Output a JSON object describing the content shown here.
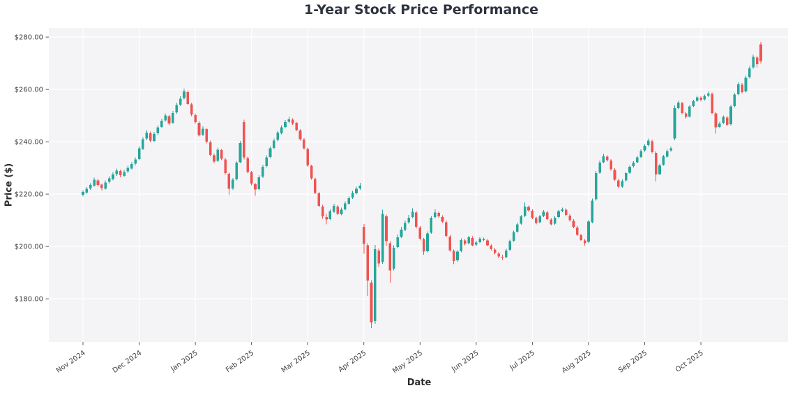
{
  "chart_data": {
    "type": "candlestick",
    "title": "1-Year Stock Price Performance",
    "xlabel": "Date",
    "ylabel": "Price ($)",
    "grid": true,
    "legend": "none",
    "up_color": "#26a69a",
    "down_color": "#ef5350",
    "ylim": [
      163.5,
      283.5
    ],
    "candles_per_month": 15,
    "x_tick_labels": [
      "Nov 2024",
      "Dec 2024",
      "Jan 2025",
      "Feb 2025",
      "Mar 2025",
      "Apr 2025",
      "May 2025",
      "Jun 2025",
      "Jul 2025",
      "Aug 2025",
      "Sep 2025",
      "Oct 2025"
    ],
    "y_ticks": [
      {
        "label": "$280.00",
        "value": 280
      },
      {
        "label": "$260.00",
        "value": 260
      },
      {
        "label": "$240.00",
        "value": 240
      },
      {
        "label": "$220.00",
        "value": 220
      },
      {
        "label": "$200.00",
        "value": 200
      },
      {
        "label": "$180.00",
        "value": 180
      }
    ],
    "ohlc_format": [
      "open",
      "high",
      "low",
      "close"
    ],
    "ohlc": [
      [
        219.8,
        221.5,
        219.1,
        220.8
      ],
      [
        220.6,
        222.7,
        220.2,
        222.0
      ],
      [
        222.2,
        224.2,
        221.6,
        223.5
      ],
      [
        223.3,
        226.3,
        222.9,
        225.5
      ],
      [
        225.3,
        225.9,
        222.8,
        223.5
      ],
      [
        223.7,
        224.1,
        221.4,
        222.3
      ],
      [
        222.1,
        225.2,
        221.8,
        224.5
      ],
      [
        224.7,
        226.8,
        224.0,
        226.0
      ],
      [
        225.8,
        228.4,
        225.3,
        227.5
      ],
      [
        227.7,
        229.8,
        227.0,
        229.0
      ],
      [
        228.8,
        229.4,
        226.5,
        227.2
      ],
      [
        227.0,
        229.3,
        226.6,
        228.5
      ],
      [
        228.7,
        230.8,
        228.1,
        230.0
      ],
      [
        229.8,
        232.3,
        229.4,
        231.5
      ],
      [
        231.7,
        234.0,
        231.0,
        233.2
      ],
      [
        233.4,
        238.3,
        233.0,
        237.5
      ],
      [
        237.3,
        241.8,
        236.8,
        241.0
      ],
      [
        241.2,
        244.4,
        240.6,
        243.5
      ],
      [
        243.3,
        243.9,
        239.8,
        240.5
      ],
      [
        240.3,
        243.8,
        239.9,
        243.0
      ],
      [
        243.2,
        246.3,
        242.6,
        245.5
      ],
      [
        245.7,
        248.9,
        245.2,
        248.0
      ],
      [
        248.2,
        250.9,
        247.6,
        250.0
      ],
      [
        249.8,
        250.3,
        246.3,
        247.0
      ],
      [
        247.2,
        251.8,
        246.8,
        251.0
      ],
      [
        251.2,
        254.8,
        250.7,
        254.0
      ],
      [
        254.2,
        257.4,
        253.6,
        256.5
      ],
      [
        256.7,
        260.3,
        256.2,
        259.3
      ],
      [
        259.0,
        259.6,
        254.0,
        254.5
      ],
      [
        254.3,
        254.9,
        249.8,
        250.5
      ],
      [
        250.2,
        250.8,
        246.9,
        247.5
      ],
      [
        247.3,
        247.9,
        242.0,
        242.5
      ],
      [
        242.7,
        245.9,
        242.2,
        245.0
      ],
      [
        244.8,
        245.3,
        239.4,
        240.0
      ],
      [
        239.8,
        240.4,
        234.4,
        235.0
      ],
      [
        234.8,
        235.5,
        231.8,
        232.5
      ],
      [
        232.7,
        237.8,
        232.3,
        237.0
      ],
      [
        236.8,
        237.3,
        233.0,
        233.5
      ],
      [
        233.3,
        233.9,
        227.4,
        228.0
      ],
      [
        227.8,
        228.3,
        219.6,
        222.0
      ],
      [
        222.2,
        226.2,
        221.7,
        225.5
      ],
      [
        225.7,
        232.6,
        225.2,
        232.0
      ],
      [
        232.2,
        240.3,
        231.8,
        239.5
      ],
      [
        247.5,
        248.4,
        233.2,
        234.0
      ],
      [
        233.8,
        234.3,
        227.9,
        228.5
      ],
      [
        228.3,
        228.8,
        223.4,
        224.0
      ],
      [
        223.8,
        224.3,
        219.4,
        221.8
      ],
      [
        221.9,
        227.2,
        221.4,
        226.5
      ],
      [
        226.7,
        231.2,
        226.2,
        230.5
      ],
      [
        230.7,
        234.8,
        230.2,
        234.0
      ],
      [
        234.2,
        238.2,
        233.8,
        237.5
      ],
      [
        237.7,
        241.2,
        237.2,
        240.5
      ],
      [
        240.7,
        244.2,
        240.2,
        243.5
      ],
      [
        243.3,
        246.3,
        242.9,
        245.5
      ],
      [
        245.7,
        248.3,
        245.2,
        247.5
      ],
      [
        247.7,
        249.7,
        247.2,
        248.6
      ],
      [
        248.4,
        249.0,
        246.5,
        247.0
      ],
      [
        247.2,
        247.7,
        244.0,
        244.5
      ],
      [
        244.3,
        244.9,
        240.5,
        241.0
      ],
      [
        240.8,
        241.4,
        237.0,
        237.5
      ],
      [
        237.3,
        237.8,
        230.5,
        231.0
      ],
      [
        230.8,
        231.3,
        225.5,
        226.0
      ],
      [
        225.8,
        226.3,
        220.0,
        220.5
      ],
      [
        220.3,
        220.9,
        215.0,
        215.5
      ],
      [
        215.3,
        215.9,
        210.6,
        211.5
      ],
      [
        211.3,
        212.4,
        208.4,
        210.3
      ],
      [
        210.5,
        214.2,
        210.0,
        213.5
      ],
      [
        213.3,
        216.3,
        212.9,
        215.5
      ],
      [
        215.3,
        215.8,
        212.0,
        212.5
      ],
      [
        212.3,
        214.8,
        211.9,
        214.0
      ],
      [
        214.2,
        217.3,
        213.8,
        216.5
      ],
      [
        216.3,
        219.3,
        215.9,
        218.5
      ],
      [
        218.7,
        221.3,
        218.2,
        220.5
      ],
      [
        220.3,
        222.8,
        219.9,
        222.0
      ],
      [
        222.2,
        224.3,
        221.7,
        223.3
      ],
      [
        207.5,
        208.6,
        197.2,
        201.0
      ],
      [
        200.5,
        201.2,
        181.1,
        187.0
      ],
      [
        186.2,
        187.1,
        168.8,
        171.0
      ],
      [
        171.5,
        200.6,
        170.4,
        199.0
      ],
      [
        198.5,
        199.3,
        192.2,
        193.5
      ],
      [
        194.0,
        214.1,
        193.4,
        212.5
      ],
      [
        211.5,
        212.2,
        200.3,
        202.0
      ],
      [
        201.2,
        202.0,
        186.2,
        190.8
      ],
      [
        191.5,
        200.4,
        190.8,
        199.5
      ],
      [
        199.8,
        204.6,
        199.2,
        203.5
      ],
      [
        203.7,
        207.5,
        203.2,
        206.5
      ],
      [
        206.3,
        209.9,
        205.9,
        209.0
      ],
      [
        209.2,
        212.0,
        208.7,
        211.0
      ],
      [
        211.2,
        214.6,
        210.8,
        213.2
      ],
      [
        213.0,
        213.5,
        206.8,
        207.5
      ],
      [
        207.3,
        207.8,
        202.3,
        203.0
      ],
      [
        202.8,
        203.3,
        196.8,
        198.0
      ],
      [
        198.2,
        205.8,
        197.8,
        205.0
      ],
      [
        205.2,
        211.6,
        204.8,
        211.0
      ],
      [
        211.2,
        214.2,
        210.7,
        213.0
      ],
      [
        212.8,
        213.4,
        211.0,
        211.5
      ],
      [
        211.3,
        211.9,
        209.0,
        209.5
      ],
      [
        209.3,
        209.9,
        203.5,
        204.0
      ],
      [
        203.8,
        204.4,
        198.0,
        198.5
      ],
      [
        198.3,
        198.9,
        193.2,
        194.5
      ],
      [
        194.7,
        198.6,
        194.2,
        198.0
      ],
      [
        198.2,
        203.1,
        197.8,
        202.5
      ],
      [
        202.3,
        202.9,
        200.4,
        201.0
      ],
      [
        201.2,
        204.1,
        200.8,
        203.5
      ],
      [
        203.3,
        203.9,
        200.0,
        200.5
      ],
      [
        200.7,
        202.2,
        200.2,
        201.5
      ],
      [
        201.7,
        203.7,
        201.2,
        203.0
      ],
      [
        202.8,
        203.4,
        202.0,
        202.5
      ],
      [
        202.3,
        202.9,
        200.0,
        200.5
      ],
      [
        200.3,
        200.9,
        198.4,
        199.0
      ],
      [
        198.8,
        199.4,
        197.0,
        197.5
      ],
      [
        197.3,
        197.9,
        195.5,
        196.2
      ],
      [
        196.0,
        196.8,
        194.9,
        195.8
      ],
      [
        195.9,
        199.1,
        195.5,
        198.5
      ],
      [
        198.7,
        202.6,
        198.3,
        202.0
      ],
      [
        202.2,
        206.1,
        201.8,
        205.5
      ],
      [
        205.7,
        209.1,
        205.3,
        208.5
      ],
      [
        208.7,
        212.1,
        208.3,
        211.5
      ],
      [
        211.7,
        216.8,
        211.3,
        215.3
      ],
      [
        215.1,
        215.7,
        213.2,
        213.8
      ],
      [
        213.6,
        214.2,
        210.5,
        211.0
      ],
      [
        210.8,
        211.4,
        208.5,
        209.0
      ],
      [
        209.2,
        212.1,
        208.8,
        211.5
      ],
      [
        211.7,
        213.9,
        211.3,
        213.2
      ],
      [
        213.0,
        213.6,
        210.0,
        210.5
      ],
      [
        210.3,
        210.9,
        208.0,
        208.5
      ],
      [
        208.7,
        211.6,
        208.3,
        211.0
      ],
      [
        211.2,
        214.1,
        210.8,
        213.5
      ],
      [
        213.6,
        214.9,
        213.1,
        214.2
      ],
      [
        214.0,
        214.6,
        211.5,
        212.0
      ],
      [
        211.8,
        212.4,
        209.5,
        210.0
      ],
      [
        209.8,
        210.4,
        207.0,
        207.5
      ],
      [
        207.3,
        207.9,
        204.0,
        204.5
      ],
      [
        204.3,
        204.9,
        202.0,
        202.5
      ],
      [
        202.3,
        202.9,
        200.3,
        201.2
      ],
      [
        201.8,
        210.2,
        201.3,
        209.5
      ],
      [
        209.2,
        218.3,
        208.8,
        217.5
      ],
      [
        218.0,
        228.9,
        217.5,
        228.0
      ],
      [
        228.2,
        232.8,
        227.8,
        232.0
      ],
      [
        232.2,
        235.4,
        231.8,
        234.5
      ],
      [
        234.3,
        234.9,
        232.5,
        233.0
      ],
      [
        232.8,
        233.4,
        229.0,
        229.5
      ],
      [
        229.3,
        229.9,
        225.0,
        225.5
      ],
      [
        225.3,
        225.9,
        222.2,
        222.8
      ],
      [
        222.9,
        225.6,
        222.4,
        225.0
      ],
      [
        225.2,
        228.5,
        224.8,
        228.0
      ],
      [
        228.2,
        231.0,
        227.8,
        230.5
      ],
      [
        230.7,
        232.6,
        230.2,
        232.0
      ],
      [
        232.2,
        234.6,
        231.8,
        234.0
      ],
      [
        234.2,
        237.1,
        233.8,
        236.5
      ],
      [
        236.7,
        239.1,
        236.2,
        238.5
      ],
      [
        238.7,
        241.2,
        238.2,
        240.5
      ],
      [
        240.2,
        240.8,
        235.5,
        236.0
      ],
      [
        235.8,
        236.3,
        224.8,
        227.5
      ],
      [
        227.7,
        231.6,
        227.2,
        231.0
      ],
      [
        231.2,
        235.0,
        230.8,
        234.5
      ],
      [
        234.3,
        237.1,
        233.9,
        236.5
      ],
      [
        236.7,
        238.2,
        236.2,
        237.5
      ],
      [
        241.3,
        253.9,
        240.6,
        252.8
      ],
      [
        252.9,
        255.7,
        252.4,
        255.0
      ],
      [
        254.8,
        255.3,
        250.5,
        251.0
      ],
      [
        250.8,
        251.4,
        248.9,
        249.5
      ],
      [
        249.7,
        254.1,
        249.2,
        253.5
      ],
      [
        253.7,
        256.1,
        253.2,
        255.5
      ],
      [
        255.7,
        257.7,
        255.2,
        257.0
      ],
      [
        256.8,
        257.4,
        255.4,
        256.0
      ],
      [
        256.2,
        258.1,
        255.8,
        257.5
      ],
      [
        257.6,
        259.2,
        257.1,
        258.5
      ],
      [
        258.3,
        258.9,
        250.5,
        251.0
      ],
      [
        250.8,
        251.3,
        243.1,
        245.5
      ],
      [
        245.7,
        247.6,
        245.2,
        247.0
      ],
      [
        247.2,
        250.1,
        246.8,
        249.5
      ],
      [
        249.3,
        249.9,
        246.0,
        246.5
      ],
      [
        246.7,
        254.1,
        246.2,
        253.5
      ],
      [
        253.7,
        258.6,
        253.2,
        258.0
      ],
      [
        258.2,
        262.7,
        257.8,
        262.0
      ],
      [
        261.8,
        262.4,
        258.4,
        259.0
      ],
      [
        259.2,
        265.2,
        258.8,
        264.5
      ],
      [
        264.7,
        269.0,
        264.2,
        268.0
      ],
      [
        268.4,
        273.2,
        267.9,
        272.4
      ],
      [
        272.2,
        272.8,
        268.4,
        269.6
      ],
      [
        277.3,
        278.2,
        269.9,
        270.8
      ]
    ]
  }
}
